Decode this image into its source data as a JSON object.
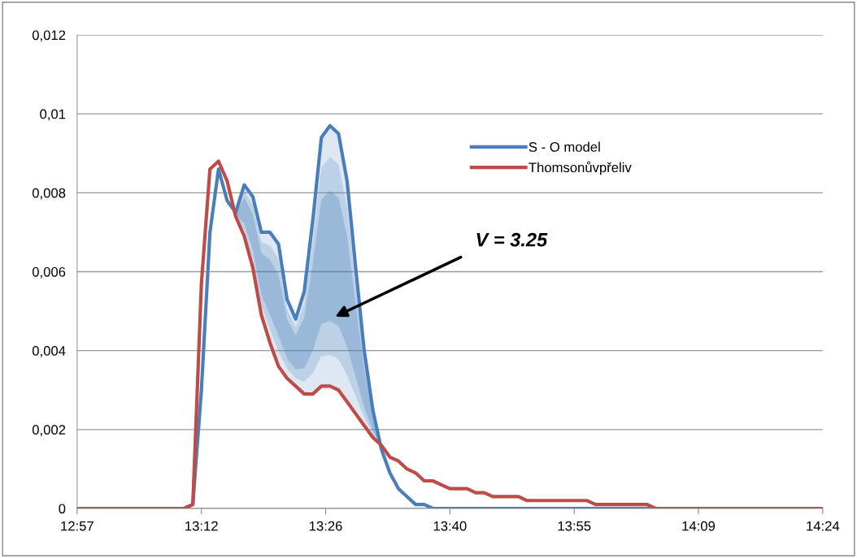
{
  "chart_data": {
    "type": "line",
    "series": [
      {
        "name": "S - O model",
        "color": "#4a7ebb",
        "x": [
          12.95,
          13.1583,
          13.175,
          13.1917,
          13.2083,
          13.225,
          13.2417,
          13.2583,
          13.275,
          13.2917,
          13.3083,
          13.325,
          13.3417,
          13.3583,
          13.375,
          13.3917,
          13.4083,
          13.425,
          13.4417,
          13.4583,
          13.475,
          13.4917,
          13.5083,
          13.525,
          13.5417,
          13.5583,
          13.575,
          13.5917,
          13.6083,
          13.625,
          13.6417,
          14.4
        ],
        "values": [
          0,
          0,
          0.0001,
          0.003,
          0.007,
          0.0086,
          0.0078,
          0.0075,
          0.0082,
          0.0079,
          0.007,
          0.007,
          0.0067,
          0.0053,
          0.0048,
          0.0055,
          0.0073,
          0.0094,
          0.0097,
          0.0095,
          0.0083,
          0.0061,
          0.004,
          0.0025,
          0.0015,
          0.0009,
          0.0005,
          0.0003,
          0.0001,
          0.0001,
          0,
          0
        ]
      },
      {
        "name": "Thomsonůvpřeliv",
        "color": "#be4b48",
        "x": [
          12.95,
          13.1583,
          13.175,
          13.1917,
          13.2083,
          13.225,
          13.2417,
          13.2583,
          13.275,
          13.2917,
          13.3083,
          13.325,
          13.3417,
          13.3583,
          13.375,
          13.3917,
          13.4083,
          13.425,
          13.4417,
          13.4583,
          13.475,
          13.4917,
          13.5083,
          13.525,
          13.5417,
          13.5583,
          13.575,
          13.5917,
          13.6083,
          13.625,
          13.6417,
          13.6583,
          13.675,
          13.6917,
          13.7083,
          13.725,
          13.7417,
          13.7583,
          13.8083,
          13.825,
          13.9417,
          13.9583,
          14.0583,
          14.075,
          14.4
        ],
        "values": [
          0,
          0,
          0.0001,
          0.0057,
          0.0086,
          0.0088,
          0.0083,
          0.0074,
          0.0069,
          0.0061,
          0.0049,
          0.0042,
          0.0036,
          0.0033,
          0.0031,
          0.0029,
          0.0029,
          0.0031,
          0.0031,
          0.003,
          0.0027,
          0.0024,
          0.0021,
          0.0018,
          0.0016,
          0.0013,
          0.0012,
          0.001,
          0.0009,
          0.0007,
          0.0007,
          0.0006,
          0.0005,
          0.0005,
          0.0005,
          0.0004,
          0.0004,
          0.0003,
          0.0003,
          0.0002,
          0.0002,
          0.0001,
          0.0001,
          0,
          0
        ]
      }
    ],
    "xlim": [
      12.95,
      14.4
    ],
    "xticks": [
      {
        "value": 12.95,
        "label": "12:57"
      },
      {
        "value": 13.1917,
        "label": "13:12"
      },
      {
        "value": 13.4333,
        "label": "13:26"
      },
      {
        "value": 13.675,
        "label": "13:40"
      },
      {
        "value": 13.9167,
        "label": "13:55"
      },
      {
        "value": 14.1583,
        "label": "14:09"
      },
      {
        "value": 14.4,
        "label": "14:24"
      }
    ],
    "ylim": [
      0,
      0.012
    ],
    "yticks": [
      0,
      {
        "value": 0.002,
        "label": "0,002"
      },
      {
        "value": 0.004,
        "label": "0,004"
      },
      {
        "value": 0.006,
        "label": "0,006"
      },
      {
        "value": 0.008,
        "label": "0,008"
      },
      {
        "value": 0.01,
        "label": "0,01"
      },
      {
        "value": 0.012,
        "label": "0,012"
      }
    ],
    "grid": "y",
    "legend": "top right",
    "marker": "none",
    "line_style": "solid",
    "annotations": [
      "V = 3.25"
    ]
  }
}
